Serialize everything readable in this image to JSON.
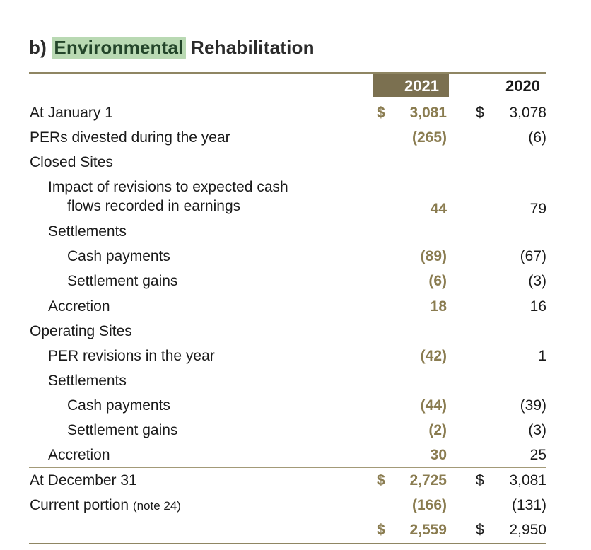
{
  "title": {
    "prefix": "b) ",
    "highlight": "Environmental",
    "rest": " Rehabilitation"
  },
  "columns": {
    "col1": "2021",
    "col2": "2020"
  },
  "colors": {
    "accent": "#8a7c50",
    "header_fill": "#7b7050",
    "highlight": "#b9d9b3"
  },
  "rows": [
    {
      "label": "At January 1",
      "v2021": "3,081",
      "v2020": "3,078",
      "dollar": "$"
    },
    {
      "label": "PERs divested during the year",
      "v2021": "(265)",
      "v2020": "(6)"
    },
    {
      "label": "Closed Sites",
      "v2021": "",
      "v2020": ""
    },
    {
      "label_line1": "Impact of revisions to expected cash",
      "label_line2": "flows recorded in earnings",
      "v2021": "44",
      "v2020": "79"
    },
    {
      "label": "Settlements",
      "v2021": "",
      "v2020": ""
    },
    {
      "label": "Cash payments",
      "v2021": "(89)",
      "v2020": "(67)"
    },
    {
      "label": "Settlement gains",
      "v2021": "(6)",
      "v2020": "(3)"
    },
    {
      "label": "Accretion",
      "v2021": "18",
      "v2020": "16"
    },
    {
      "label": "Operating Sites",
      "v2021": "",
      "v2020": ""
    },
    {
      "label": "PER revisions in the year",
      "v2021": "(42)",
      "v2020": "1"
    },
    {
      "label": "Settlements",
      "v2021": "",
      "v2020": ""
    },
    {
      "label": "Cash payments",
      "v2021": "(44)",
      "v2020": "(39)"
    },
    {
      "label": "Settlement gains",
      "v2021": "(2)",
      "v2020": "(3)"
    },
    {
      "label": "Accretion",
      "v2021": "30",
      "v2020": "25"
    },
    {
      "label": "At December 31",
      "v2021": "2,725",
      "v2020": "3,081",
      "dollar": "$"
    },
    {
      "label": "Current portion",
      "note": "(note 24)",
      "v2021": "(166)",
      "v2020": "(131)"
    },
    {
      "label": "",
      "v2021": "2,559",
      "v2020": "2,950",
      "dollar": "$"
    }
  ]
}
